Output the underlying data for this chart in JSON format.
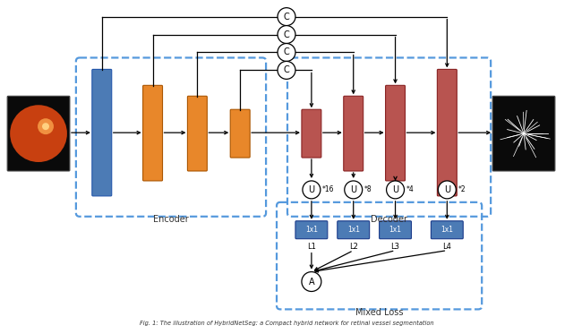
{
  "figsize": [
    6.4,
    3.73
  ],
  "dpi": 100,
  "bg_color": "#ffffff",
  "enc_color": "#E8872A",
  "blue_color": "#4C7BB5",
  "dec_color": "#B85450",
  "loss_color": "#4C7BB5",
  "dash_color": "#5599DD",
  "encoder_label": "Encoder",
  "decoder_label": "Decoder",
  "mixed_loss_label": "Mixed Loss",
  "caption": "Fig. 1: The illustration of HybridNetSeg: a Compact hybrid network for retinal vessel segmentation",
  "u_scale_labels": [
    "*16",
    "*8",
    "*4",
    "*2"
  ],
  "loss_labels": [
    "1x1",
    "1x1",
    "1x1",
    "1x1"
  ],
  "l_labels": [
    "L1",
    "L2",
    "L3",
    "L4"
  ],
  "a_label": "A",
  "c_label": "C",
  "u_label": "U"
}
